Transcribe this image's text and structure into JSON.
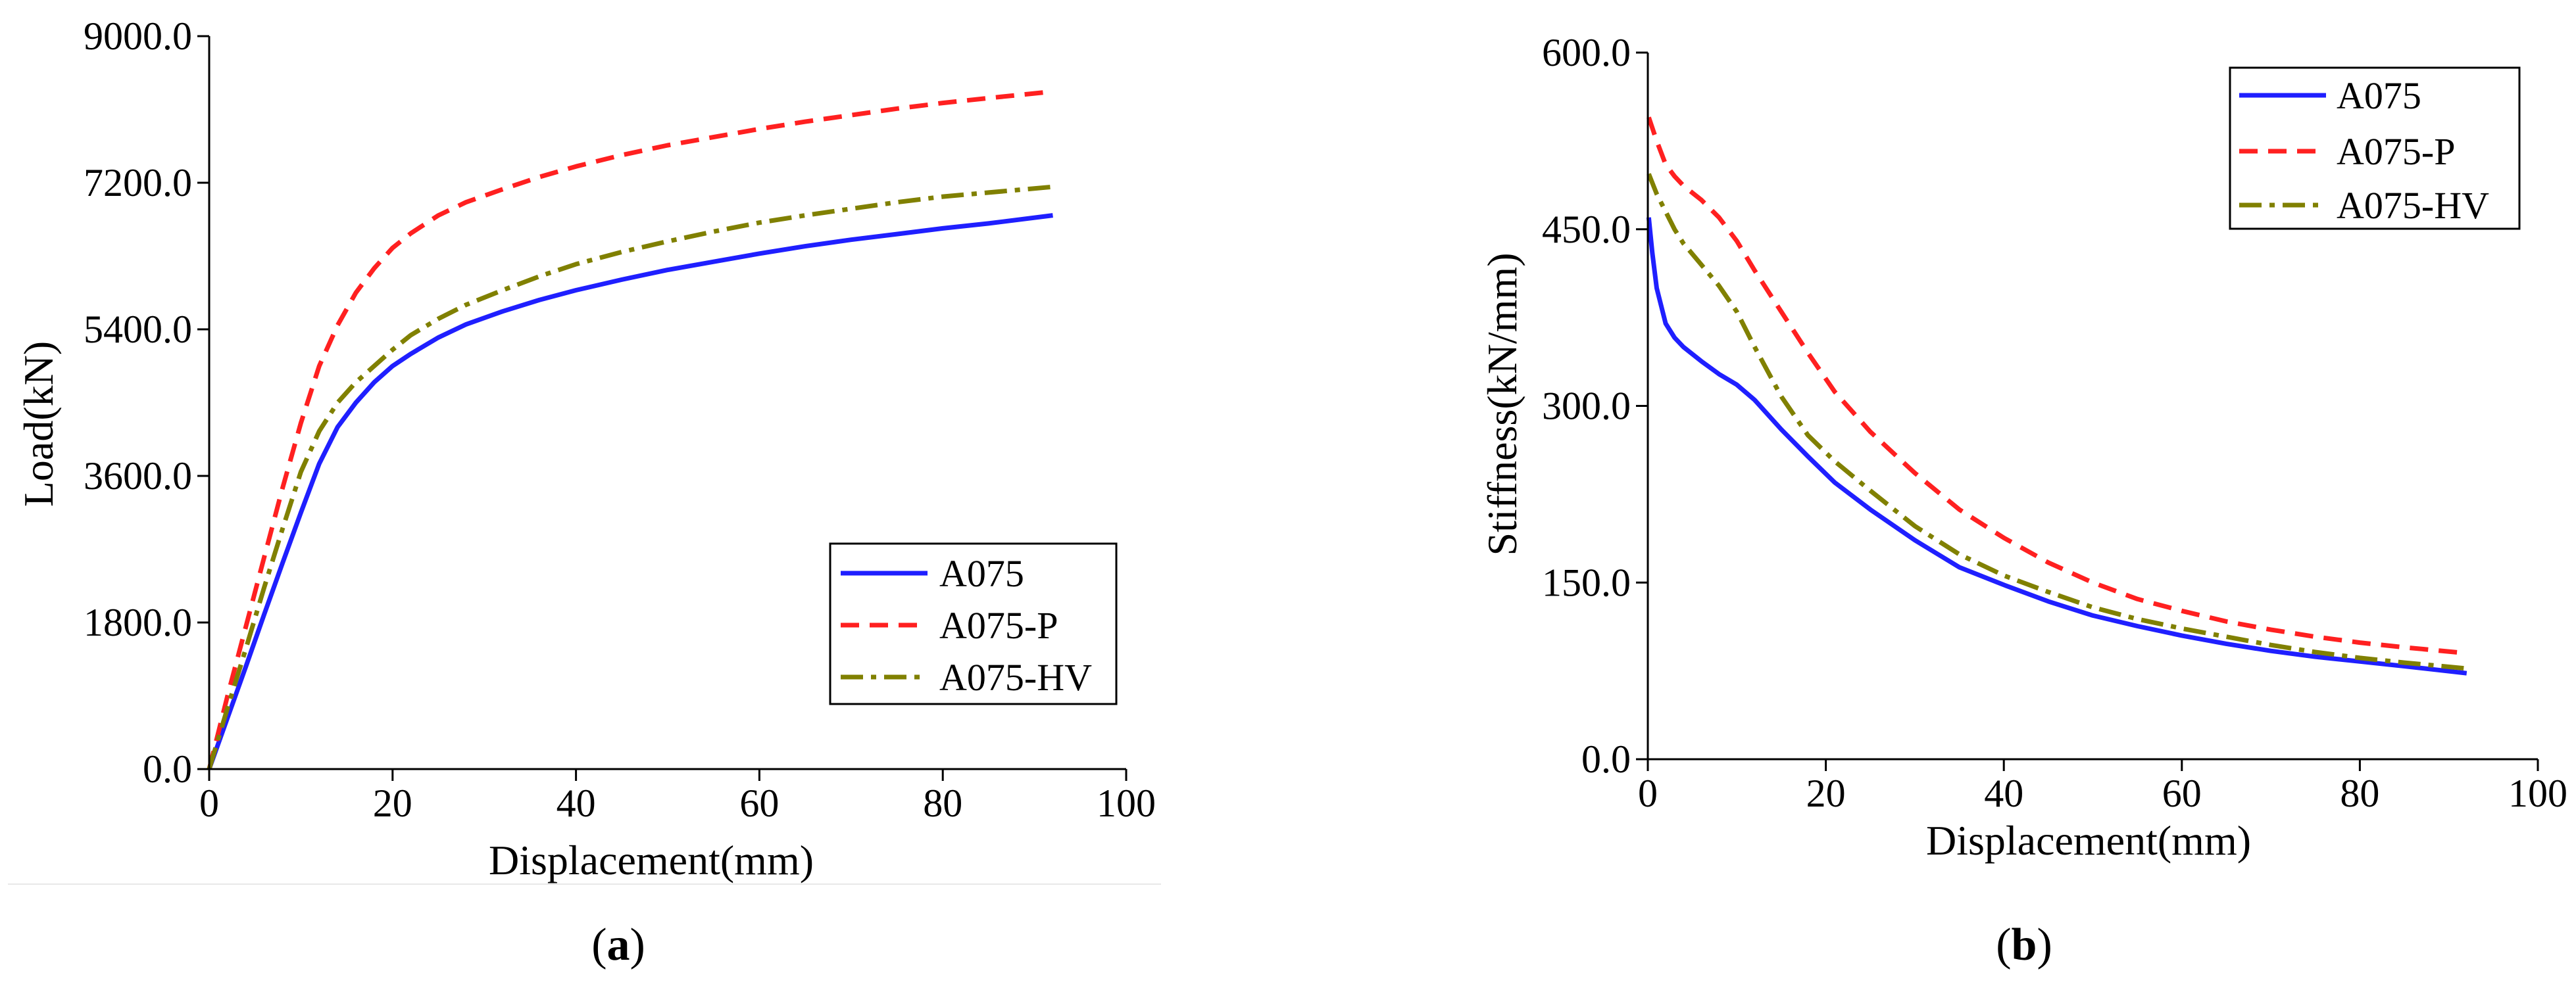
{
  "figure": {
    "captions": [
      {
        "open": "(",
        "letter": "a",
        "close": ")"
      },
      {
        "open": "(",
        "letter": "b",
        "close": ")"
      }
    ]
  },
  "colors": {
    "A075": "#1f1fff",
    "A075-P": "#ff2020",
    "A075-HV": "#808000"
  },
  "chart_data": [
    {
      "type": "line",
      "title": "",
      "xlabel": "Displacement(mm)",
      "ylabel": "Load(kN)",
      "xlim": [
        0,
        100
      ],
      "ylim": [
        0,
        9000
      ],
      "xticks": [
        0,
        20,
        40,
        60,
        80,
        100
      ],
      "xtick_labels": [
        "0",
        "20",
        "40",
        "60",
        "80",
        "100"
      ],
      "yticks": [
        0,
        1800,
        3600,
        5400,
        7200,
        9000
      ],
      "ytick_labels": [
        "0.0",
        "1800.0",
        "3600.0",
        "5400.0",
        "7200.0",
        "9000.0"
      ],
      "legend_position": "bottom-right",
      "series": [
        {
          "name": "A075",
          "style": "solid",
          "x": [
            0,
            2,
            4,
            6,
            8,
            10,
            12,
            14,
            16,
            18,
            20,
            22,
            25,
            28,
            32,
            36,
            40,
            45,
            50,
            55,
            60,
            65,
            70,
            75,
            80,
            85,
            92
          ],
          "y": [
            0,
            630,
            1260,
            1900,
            2530,
            3150,
            3750,
            4200,
            4500,
            4750,
            4950,
            5100,
            5300,
            5460,
            5620,
            5760,
            5880,
            6010,
            6130,
            6230,
            6330,
            6420,
            6500,
            6570,
            6640,
            6700,
            6800
          ]
        },
        {
          "name": "A075-P",
          "style": "dashed",
          "x": [
            0,
            2,
            4,
            6,
            8,
            10,
            12,
            14,
            16,
            18,
            20,
            22,
            25,
            28,
            32,
            36,
            40,
            45,
            50,
            55,
            60,
            65,
            70,
            75,
            80,
            85,
            92
          ],
          "y": [
            0,
            900,
            1750,
            2600,
            3450,
            4250,
            4950,
            5450,
            5850,
            6150,
            6400,
            6580,
            6800,
            6960,
            7120,
            7270,
            7400,
            7540,
            7660,
            7760,
            7860,
            7950,
            8030,
            8110,
            8180,
            8240,
            8320
          ]
        },
        {
          "name": "A075-HV",
          "style": "dashdot",
          "x": [
            0,
            2,
            4,
            6,
            8,
            10,
            12,
            14,
            16,
            18,
            20,
            22,
            25,
            28,
            32,
            36,
            40,
            45,
            50,
            55,
            60,
            65,
            70,
            75,
            80,
            85,
            92
          ],
          "y": [
            0,
            750,
            1480,
            2230,
            2950,
            3650,
            4150,
            4500,
            4750,
            4950,
            5150,
            5330,
            5530,
            5700,
            5880,
            6050,
            6200,
            6350,
            6480,
            6600,
            6710,
            6800,
            6880,
            6960,
            7030,
            7080,
            7150
          ]
        }
      ]
    },
    {
      "type": "line",
      "title": "",
      "xlabel": "Displacement(mm)",
      "ylabel": "Stiffness(kN/mm)",
      "xlim": [
        0,
        100
      ],
      "ylim": [
        0,
        600
      ],
      "xticks": [
        0,
        20,
        40,
        60,
        80,
        100
      ],
      "xtick_labels": [
        "0",
        "20",
        "40",
        "60",
        "80",
        "100"
      ],
      "yticks": [
        0,
        150,
        300,
        450,
        600
      ],
      "ytick_labels": [
        "0.0",
        "150.0",
        "300.0",
        "450.0",
        "600.0"
      ],
      "legend_position": "top-right",
      "series": [
        {
          "name": "A075",
          "style": "solid",
          "x": [
            0.1,
            0.5,
            1,
            2,
            3,
            4,
            6,
            8,
            10,
            12,
            15,
            18,
            21,
            25,
            30,
            35,
            40,
            45,
            50,
            55,
            60,
            65,
            70,
            75,
            80,
            85,
            92
          ],
          "y": [
            460,
            430,
            400,
            370,
            358,
            350,
            338,
            327,
            318,
            305,
            280,
            257,
            235,
            212,
            186,
            163,
            148,
            134,
            122,
            113,
            105,
            98,
            92,
            87,
            83,
            79,
            73
          ]
        },
        {
          "name": "A075-P",
          "style": "dashed",
          "x": [
            0.1,
            1,
            2,
            3,
            4,
            6,
            8,
            10,
            12,
            15,
            18,
            21,
            25,
            30,
            35,
            40,
            45,
            50,
            55,
            60,
            65,
            70,
            75,
            80,
            85,
            92
          ],
          "y": [
            545,
            525,
            505,
            495,
            487,
            475,
            460,
            440,
            415,
            380,
            345,
            312,
            278,
            243,
            212,
            188,
            167,
            150,
            136,
            126,
            117,
            110,
            104,
            99,
            95,
            90
          ]
        },
        {
          "name": "A075-HV",
          "style": "dashdot",
          "x": [
            0.1,
            1,
            2,
            3,
            4,
            6,
            8,
            10,
            12,
            15,
            18,
            21,
            25,
            30,
            35,
            40,
            45,
            50,
            55,
            60,
            65,
            70,
            75,
            80,
            85,
            92
          ],
          "y": [
            497,
            480,
            465,
            450,
            438,
            420,
            402,
            380,
            350,
            308,
            275,
            253,
            228,
            198,
            174,
            156,
            142,
            129,
            119,
            111,
            104,
            97,
            91,
            86,
            82,
            77
          ]
        }
      ]
    }
  ]
}
